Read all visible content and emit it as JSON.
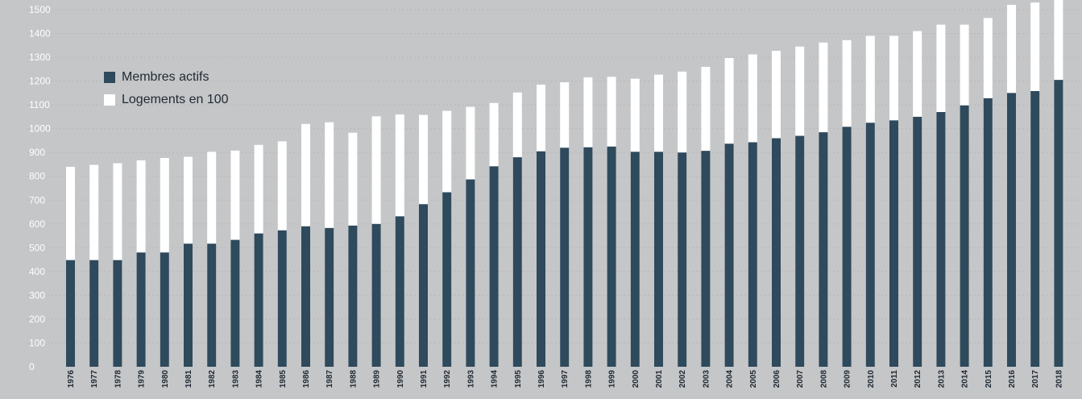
{
  "chart_data": {
    "type": "bar",
    "stacked": false,
    "overlapping_bars": true,
    "categories": [
      "1976",
      "1977",
      "1978",
      "1979",
      "1980",
      "1981",
      "1982",
      "1983",
      "1984",
      "1985",
      "1986",
      "1987",
      "1988",
      "1989",
      "1990",
      "1991",
      "1992",
      "1993",
      "1994",
      "1995",
      "1996",
      "1997",
      "1998",
      "1999",
      "2000",
      "2001",
      "2002",
      "2003",
      "2004",
      "2005",
      "2006",
      "2007",
      "2008",
      "2009",
      "2010",
      "2011",
      "2012",
      "2013",
      "2014",
      "2015",
      "2016",
      "2017",
      "2018"
    ],
    "series": [
      {
        "name": "Logements en 100",
        "color": "#ffffff",
        "values": [
          840,
          848,
          855,
          867,
          877,
          882,
          903,
          908,
          932,
          947,
          1020,
          1027,
          983,
          1052,
          1060,
          1058,
          1075,
          1092,
          1108,
          1152,
          1185,
          1195,
          1216,
          1218,
          1210,
          1227,
          1240,
          1260,
          1297,
          1312,
          1327,
          1345,
          1362,
          1372,
          1390,
          1390,
          1410,
          1437,
          1437,
          1465,
          1520,
          1530,
          1555
        ]
      },
      {
        "name": "Membres actifs",
        "color": "#2e4a5c",
        "values": [
          448,
          448,
          448,
          480,
          480,
          517,
          517,
          533,
          560,
          573,
          590,
          583,
          593,
          600,
          632,
          683,
          733,
          787,
          842,
          880,
          905,
          920,
          922,
          925,
          903,
          903,
          900,
          907,
          937,
          943,
          960,
          970,
          985,
          1008,
          1025,
          1035,
          1050,
          1070,
          1098,
          1128,
          1150,
          1158,
          1205
        ]
      }
    ],
    "ylim": [
      0,
      1500
    ],
    "yticks": [
      0,
      100,
      200,
      300,
      400,
      500,
      600,
      700,
      800,
      900,
      1000,
      1100,
      1200,
      1300,
      1400,
      1500
    ],
    "grid": true,
    "legend_position": "upper-left, inside plot",
    "xlabel": "",
    "ylabel": "",
    "title": ""
  },
  "legend": {
    "items": [
      {
        "label": "Membres actifs",
        "color": "#2e4a5c"
      },
      {
        "label": "Logements en 100",
        "color": "#ffffff"
      }
    ]
  }
}
